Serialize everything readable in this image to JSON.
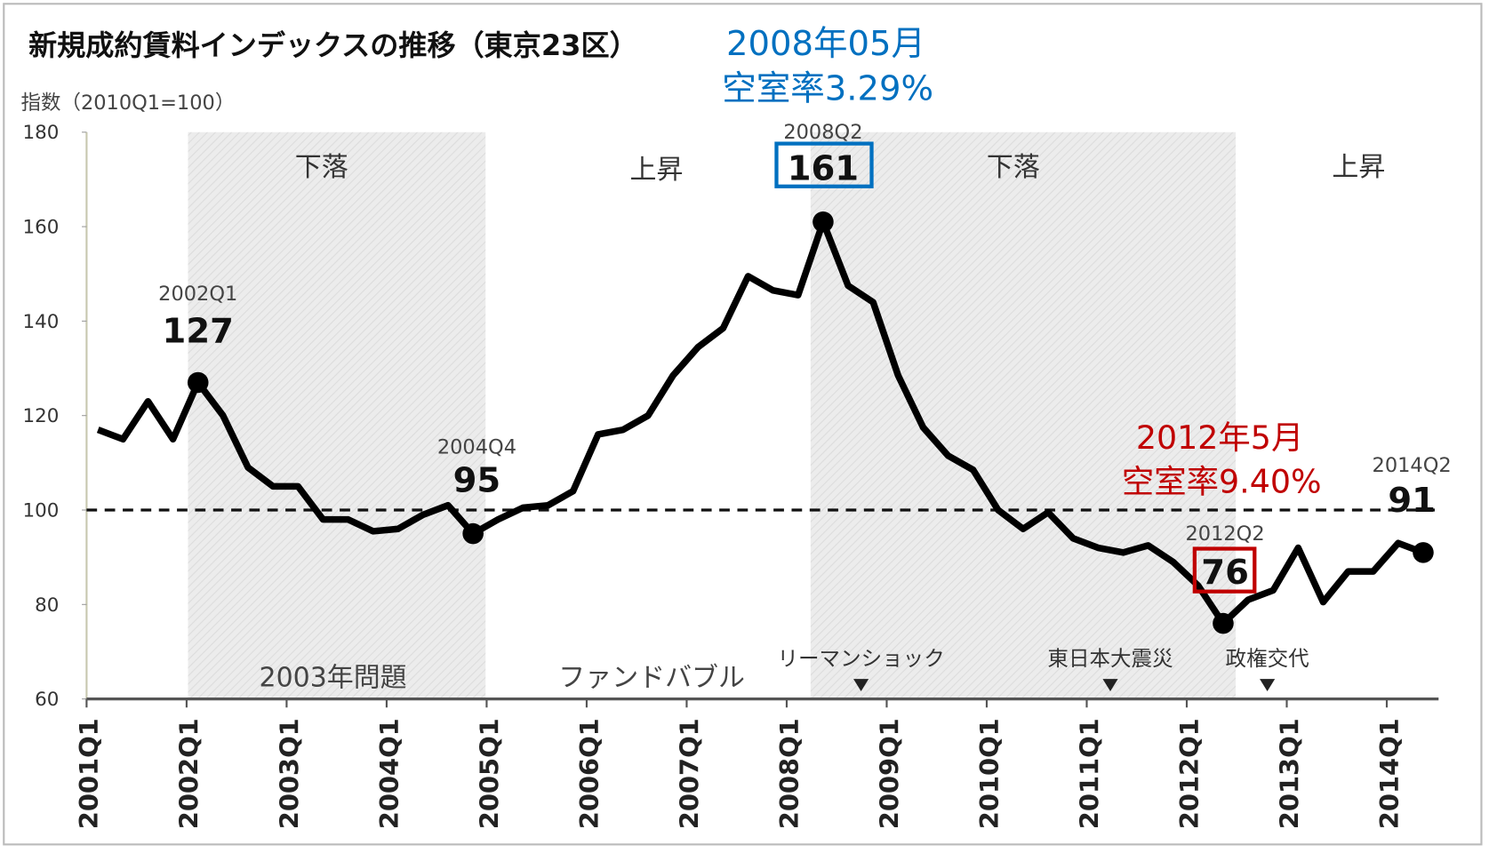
{
  "chart_data": {
    "type": "line",
    "title": "新規成約賃料インデックスの推移（東京23区）",
    "ylabel": "指数（2010Q1=100）",
    "ylim": [
      60,
      180
    ],
    "yticks": [
      180,
      160,
      140,
      120,
      100,
      80,
      60
    ],
    "xticks": [
      "2001Q1",
      "2002Q1",
      "2003Q1",
      "2004Q1",
      "2005Q1",
      "2006Q1",
      "2007Q1",
      "2008Q1",
      "2009Q1",
      "2010Q1",
      "2011Q1",
      "2012Q1",
      "2013Q1",
      "2014Q1"
    ],
    "reference_line": 100,
    "series": [
      {
        "name": "新規成約賃料インデックス",
        "x_start": "2001Q1",
        "x_end": "2014Q2",
        "values": [
          117,
          115,
          123,
          115,
          127,
          120,
          109,
          105,
          105,
          98,
          98,
          95.5,
          96,
          99,
          101,
          95,
          98,
          100.5,
          101,
          104,
          116,
          117,
          120,
          128.5,
          134.5,
          138.5,
          149.5,
          146.5,
          145.5,
          161,
          147.5,
          144,
          128.5,
          117.5,
          111.5,
          108.5,
          100,
          96,
          99.5,
          94,
          92,
          91,
          92.5,
          89,
          84,
          76,
          81,
          83,
          92,
          80.5,
          87,
          87,
          93,
          91
        ]
      }
    ],
    "shaded_periods": [
      {
        "label": "下落",
        "from_index": 3.6,
        "to_index": 15.5
      },
      {
        "label": "下落",
        "from_index": 28.5,
        "to_index": 45.5
      }
    ],
    "phase_labels": [
      "下落",
      "上昇",
      "下落",
      "上昇"
    ],
    "point_labels": [
      {
        "index": 4,
        "period": "2002Q1",
        "value": "127"
      },
      {
        "index": 15,
        "period": "2004Q4",
        "value": "95"
      },
      {
        "index": 29,
        "period": "2008Q2",
        "value": "161"
      },
      {
        "index": 45,
        "period": "2012Q2",
        "value": "76"
      },
      {
        "index": 53,
        "period": "2014Q2",
        "value": "91"
      }
    ],
    "events": [
      "2003年問題",
      "ファンドバブル",
      "リーマンショック",
      "東日本大震災",
      "政権交代"
    ],
    "annotations": {
      "peak": {
        "line1": "2008年05月",
        "line2": "空室率3.29%",
        "color": "#0070c0"
      },
      "trough": {
        "line1": "2012年5月",
        "line2": "空室率9.40%",
        "color": "#c00000"
      }
    }
  }
}
